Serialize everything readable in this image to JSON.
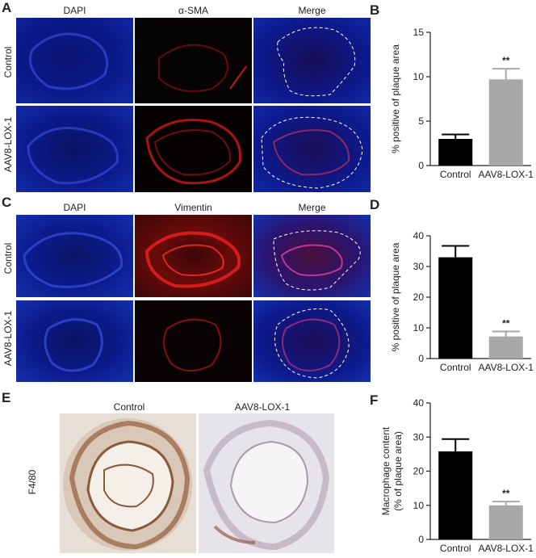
{
  "panels": {
    "A": {
      "letter": "A",
      "cols": [
        "DAPI",
        "α-SMA",
        "Merge"
      ],
      "rows": [
        "Control",
        "AAV8-LOX-1"
      ]
    },
    "C": {
      "letter": "C",
      "cols": [
        "DAPI",
        "Vimentin",
        "Merge"
      ],
      "rows": [
        "Control",
        "AAV8-LOX-1"
      ]
    },
    "E": {
      "letter": "E",
      "cols": [
        "Control",
        "AAV8-LOX-1"
      ],
      "row": "F4/80"
    }
  },
  "chart_data": [
    {
      "type": "bar",
      "letter": "B",
      "categories": [
        "Control",
        "AAV8-LOX-1"
      ],
      "values": [
        3.0,
        9.7
      ],
      "errors": [
        0.5,
        1.2
      ],
      "ylabel": "% positive of plaque area",
      "ylim": [
        0,
        15
      ],
      "yticks": [
        0,
        5,
        10,
        15
      ],
      "significance": [
        "",
        "**"
      ],
      "colors": [
        "#000000",
        "#a8a8a8"
      ]
    },
    {
      "type": "bar",
      "letter": "D",
      "categories": [
        "Control",
        "AAV8-LOX-1"
      ],
      "values": [
        33,
        7.2
      ],
      "errors": [
        3.7,
        1.6
      ],
      "ylabel": "% positive of plaque area",
      "ylim": [
        0,
        40
      ],
      "yticks": [
        0,
        10,
        20,
        30,
        40
      ],
      "significance": [
        "",
        "**"
      ],
      "colors": [
        "#000000",
        "#a8a8a8"
      ]
    },
    {
      "type": "bar",
      "letter": "F",
      "categories": [
        "Control",
        "AAV8-LOX-1"
      ],
      "values": [
        25.8,
        10.0
      ],
      "errors": [
        3.6,
        1.1
      ],
      "ylabel": "Macrophage content (% of plaque area)",
      "ylim": [
        0,
        40
      ],
      "yticks": [
        0,
        10,
        20,
        30,
        40
      ],
      "significance": [
        "",
        "**"
      ],
      "colors": [
        "#000000",
        "#a8a8a8"
      ]
    }
  ]
}
